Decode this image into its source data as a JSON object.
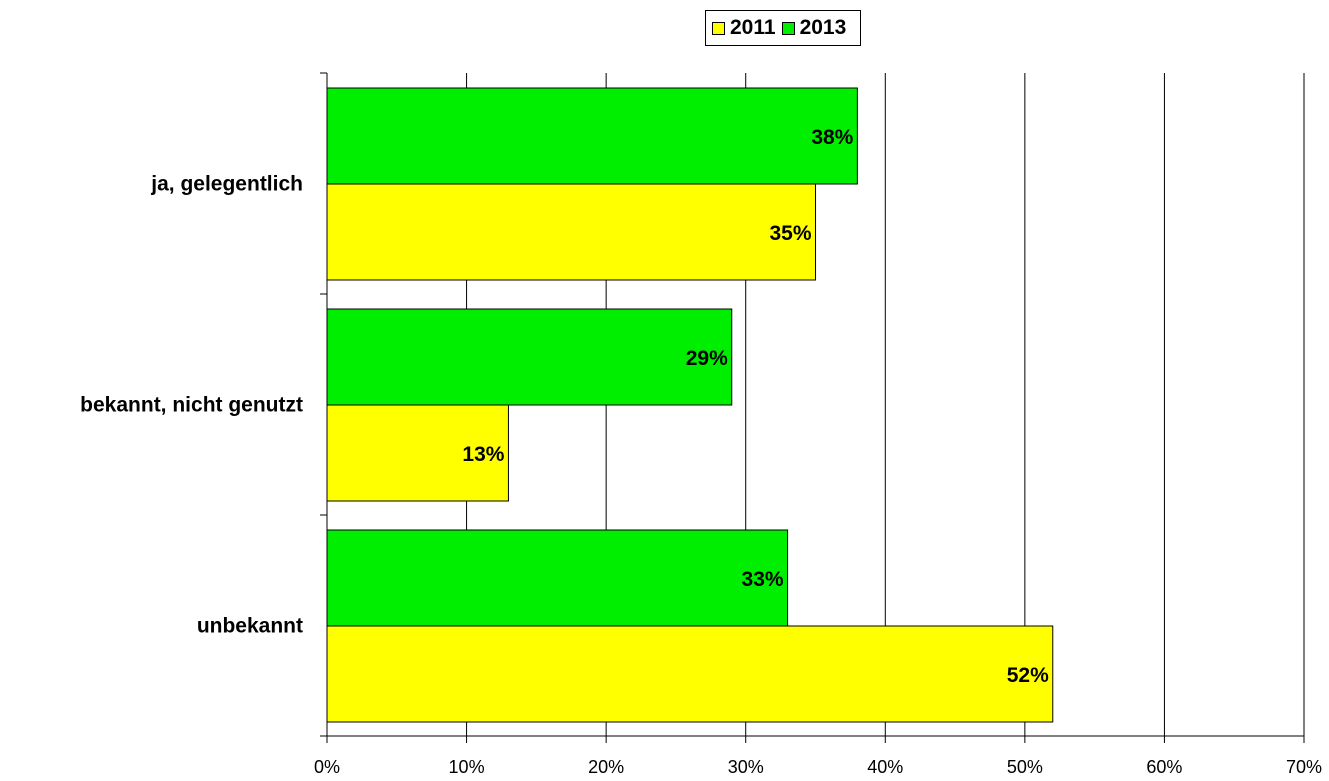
{
  "chart_data": {
    "type": "bar",
    "orientation": "horizontal",
    "categories": [
      "ja, gelegentlich",
      "bekannt, nicht genutzt",
      "unbekannt"
    ],
    "series": [
      {
        "name": "2011",
        "color": "#ffff00",
        "values": [
          35,
          13,
          52
        ],
        "labels": [
          "35%",
          "13%",
          "52%"
        ]
      },
      {
        "name": "2013",
        "color": "#00ee00",
        "values": [
          38,
          29,
          33
        ],
        "labels": [
          "38%",
          "29%",
          "33%"
        ]
      }
    ],
    "xlim": [
      0,
      70
    ],
    "xticks": [
      0,
      10,
      20,
      30,
      40,
      50,
      60,
      70
    ],
    "xtick_labels": [
      "0%",
      "10%",
      "20%",
      "30%",
      "40%",
      "50%",
      "60%",
      "70%"
    ],
    "grid": "vertical",
    "legend_position": "top-center"
  }
}
